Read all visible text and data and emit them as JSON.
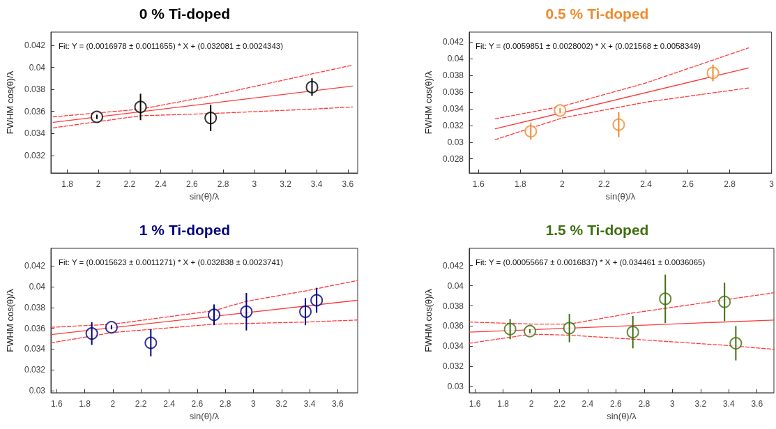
{
  "chart_data": [
    {
      "type": "scatter",
      "title": "0 % Ti-doped",
      "xlabel": "sin(θ)/λ",
      "ylabel": "FWHM cos(θ)/λ",
      "annotations": [
        "Fit: Y = (0.0016978 ± 0.0011655) * X + (0.032081 ± 0.0024343)"
      ],
      "xlim": [
        1.695,
        3.663
      ],
      "ylim": [
        0.0304,
        0.0432
      ],
      "xticks": [
        1.8,
        2,
        2.2,
        2.4,
        2.6,
        2.8,
        3,
        3.2,
        3.4,
        3.6
      ],
      "yticks": [
        0.032,
        0.034,
        0.036,
        0.038,
        0.04,
        0.042
      ],
      "grid": false,
      "series": [
        {
          "marker": "circle",
          "color": "#000000",
          "x": [
            1.99,
            2.27,
            2.72,
            3.37
          ],
          "values": [
            0.0355,
            0.0364,
            0.0354,
            0.0382
          ],
          "errors": [
            0.0002,
            0.0012,
            0.0012,
            0.0008
          ]
        },
        {
          "type": "line",
          "marker": "none",
          "line_style": "solid",
          "color": "#ff3b3b",
          "x": [
            1.71,
            3.63
          ],
          "values": [
            0.035,
            0.0383
          ]
        },
        {
          "type": "line",
          "marker": "none",
          "line_style": "dashed",
          "color": "#ff3b3b",
          "x": [
            1.71,
            2.27,
            2.72,
            3.37,
            3.63
          ],
          "values": [
            0.0355,
            0.0362,
            0.0374,
            0.0394,
            0.0402
          ]
        },
        {
          "type": "line",
          "marker": "none",
          "line_style": "dashed",
          "color": "#ff3b3b",
          "x": [
            1.71,
            2.27,
            2.72,
            3.37,
            3.63
          ],
          "values": [
            0.0345,
            0.0356,
            0.0358,
            0.0362,
            0.0364
          ]
        }
      ]
    },
    {
      "type": "scatter",
      "title": "0.5 % Ti-doped",
      "xlabel": "sin(θ)/λ",
      "ylabel": "FWHM cos(θ)/λ",
      "annotations": [
        "Fit: Y = (0.0059851 ± 0.0028002) * X + (0.021568 ± 0.0058349)"
      ],
      "xlim": [
        1.556,
        3.0
      ],
      "ylim": [
        0.0263,
        0.0432
      ],
      "xticks": [
        1.6,
        1.8,
        2,
        2.2,
        2.4,
        2.6,
        2.8,
        3
      ],
      "yticks": [
        0.028,
        0.03,
        0.032,
        0.034,
        0.036,
        0.038,
        0.04,
        0.042
      ],
      "grid": false,
      "series": [
        {
          "marker": "circle",
          "color": "#ef8a2c",
          "x": [
            1.85,
            1.99,
            2.27,
            2.72
          ],
          "values": [
            0.0313,
            0.0338,
            0.0321,
            0.0383
          ],
          "errors": [
            0.001,
            0.0003,
            0.0015,
            0.001
          ]
        },
        {
          "type": "line",
          "marker": "none",
          "line_style": "solid",
          "color": "#ff3b3b",
          "x": [
            1.68,
            2.89
          ],
          "values": [
            0.0316,
            0.0389
          ]
        },
        {
          "type": "line",
          "marker": "none",
          "line_style": "dashed",
          "color": "#ff3b3b",
          "x": [
            1.68,
            2.0,
            2.4,
            2.89
          ],
          "values": [
            0.0328,
            0.0343,
            0.0371,
            0.0413
          ]
        },
        {
          "type": "line",
          "marker": "none",
          "line_style": "dashed",
          "color": "#ff3b3b",
          "x": [
            1.68,
            2.0,
            2.4,
            2.89
          ],
          "values": [
            0.0303,
            0.0329,
            0.0348,
            0.0365
          ]
        }
      ]
    },
    {
      "type": "scatter",
      "title": "1 % Ti-doped",
      "xlabel": "sin(θ)/λ",
      "ylabel": "FWHM cos(θ)/λ",
      "annotations": [
        "Fit: Y = (0.0015623 ± 0.0011271) * X + (0.032838 ± 0.0023741)"
      ],
      "xlim": [
        1.559,
        3.742
      ],
      "ylim": [
        0.0298,
        0.0437
      ],
      "xticks": [
        1.6,
        1.8,
        2,
        2.2,
        2.4,
        2.6,
        2.8,
        3,
        3.2,
        3.4,
        3.6
      ],
      "yticks": [
        0.03,
        0.032,
        0.034,
        0.036,
        0.038,
        0.04,
        0.042
      ],
      "grid": false,
      "series": [
        {
          "marker": "circle",
          "color": "#000080",
          "x": [
            1.85,
            1.99,
            2.27,
            2.72,
            2.95,
            3.37,
            3.45
          ],
          "values": [
            0.0355,
            0.0361,
            0.0346,
            0.0373,
            0.0376,
            0.0376,
            0.0387
          ],
          "errors": [
            0.0011,
            0.0002,
            0.0013,
            0.001,
            0.0018,
            0.0013,
            0.0012
          ]
        },
        {
          "type": "line",
          "marker": "none",
          "line_style": "solid",
          "color": "#ff3b3b",
          "x": [
            1.56,
            3.74
          ],
          "values": [
            0.0354,
            0.0387
          ]
        },
        {
          "type": "line",
          "marker": "none",
          "line_style": "dashed",
          "color": "#ff3b3b",
          "x": [
            1.56,
            2.0,
            2.72,
            2.95,
            3.37,
            3.74
          ],
          "values": [
            0.0361,
            0.0364,
            0.0377,
            0.0386,
            0.0396,
            0.0406
          ]
        },
        {
          "type": "line",
          "marker": "none",
          "line_style": "dashed",
          "color": "#ff3b3b",
          "x": [
            1.56,
            2.0,
            2.72,
            3.37,
            3.74
          ],
          "values": [
            0.0346,
            0.0356,
            0.0364,
            0.0366,
            0.0368
          ]
        }
      ]
    },
    {
      "type": "scatter",
      "title": "1.5 % Ti-doped",
      "xlabel": "sin(θ)/λ",
      "ylabel": "FWHM cos(θ)/λ",
      "annotations": [
        "Fit: Y = (0.00055667 ± 0.0016837) * X + (0.034461 ± 0.0036065)"
      ],
      "xlim": [
        1.56,
        3.72
      ],
      "ylim": [
        0.0294,
        0.0437
      ],
      "xticks": [
        1.6,
        1.8,
        2,
        2.2,
        2.4,
        2.6,
        2.8,
        3,
        3.2,
        3.4,
        3.6
      ],
      "yticks": [
        0.03,
        0.032,
        0.034,
        0.036,
        0.038,
        0.04,
        0.042
      ],
      "grid": false,
      "series": [
        {
          "marker": "circle",
          "color": "#3f6f10",
          "x": [
            1.85,
            1.99,
            2.27,
            2.72,
            2.95,
            3.37,
            3.45
          ],
          "values": [
            0.0357,
            0.0355,
            0.0358,
            0.0354,
            0.0387,
            0.0384,
            0.0343
          ],
          "errors": [
            0.001,
            0.0002,
            0.0014,
            0.0016,
            0.0024,
            0.0019,
            0.0017
          ]
        },
        {
          "type": "line",
          "marker": "none",
          "line_style": "solid",
          "color": "#ff3b3b",
          "x": [
            1.56,
            3.72
          ],
          "values": [
            0.0354,
            0.0366
          ]
        },
        {
          "type": "line",
          "marker": "none",
          "line_style": "dashed",
          "color": "#ff3b3b",
          "x": [
            1.56,
            2.0,
            2.27,
            2.72,
            3.37,
            3.72
          ],
          "values": [
            0.0364,
            0.0362,
            0.0362,
            0.0373,
            0.0386,
            0.0393
          ]
        },
        {
          "type": "line",
          "marker": "none",
          "line_style": "dashed",
          "color": "#ff3b3b",
          "x": [
            1.56,
            2.0,
            2.27,
            2.72,
            3.37,
            3.72
          ],
          "values": [
            0.0343,
            0.0352,
            0.0351,
            0.0347,
            0.0341,
            0.0337
          ]
        }
      ]
    }
  ]
}
